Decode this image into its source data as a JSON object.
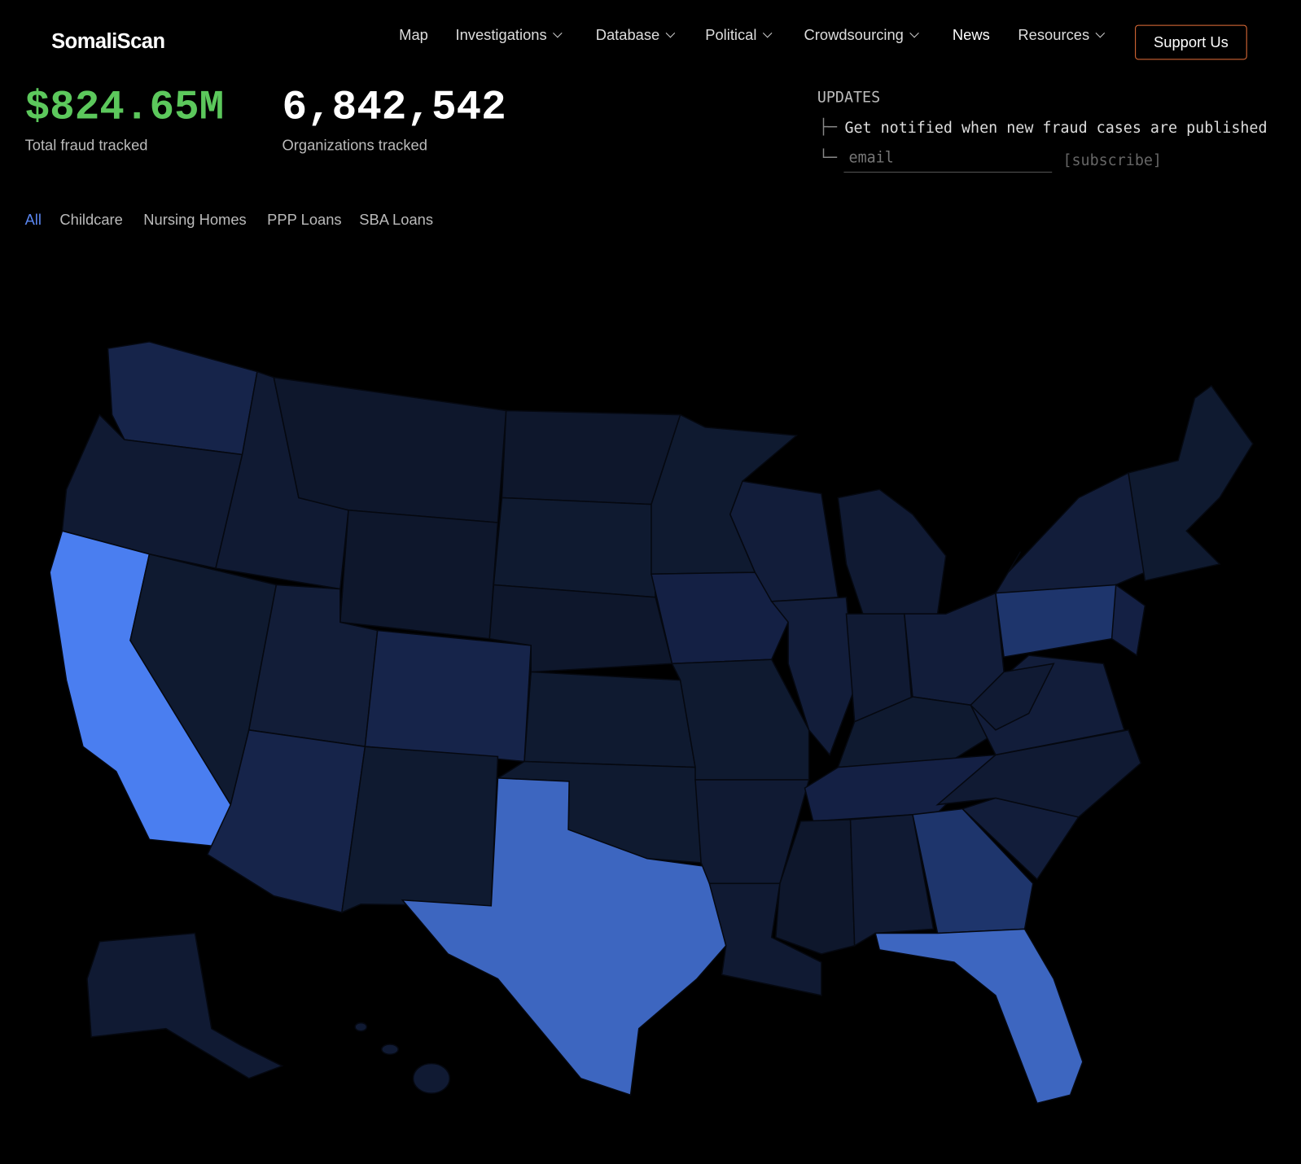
{
  "header": {
    "logo": "SomaliScan",
    "nav": [
      "Map",
      "Investigations",
      "Database",
      "Political",
      "Crowdsourcing",
      "News",
      "Resources"
    ],
    "cta": "Support Us"
  },
  "stats": [
    {
      "value": "$824.65M",
      "label": "Total fraud tracked"
    },
    {
      "value": "6,842,542",
      "label": "Organizations tracked"
    }
  ],
  "updates": {
    "title": "UPDATES",
    "text": "Get notified when new fraud cases are published",
    "placeholder": "email",
    "button": "[subscribe]"
  },
  "filters": [
    "All",
    "Childcare",
    "Nursing Homes",
    "PPP Loans",
    "SBA Loans"
  ]
}
